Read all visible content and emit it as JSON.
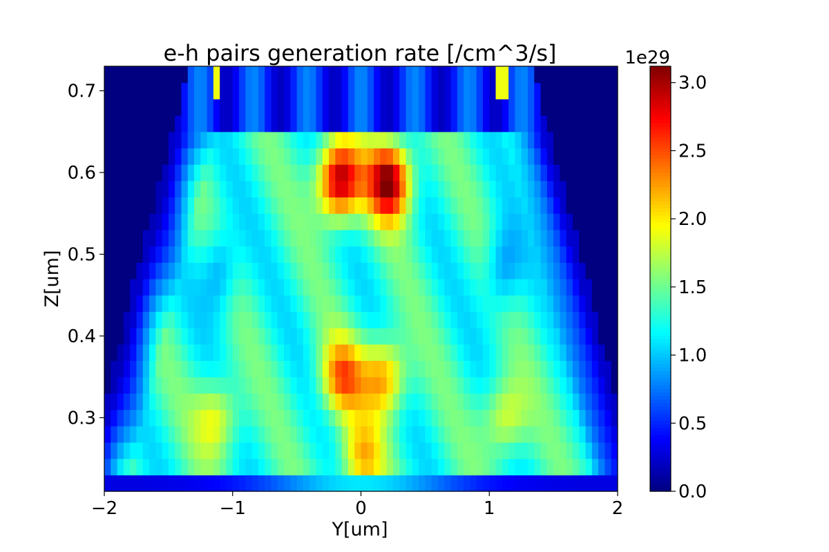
{
  "chart_data": {
    "type": "heatmap",
    "title": "e-h pairs generation rate [/cm^3/s]",
    "xlabel": "Y[um]",
    "ylabel": "Z[um]",
    "xlim": [
      -2.0,
      2.0
    ],
    "ylim": [
      0.21,
      0.73
    ],
    "x_ticks": [
      -2,
      -1,
      0,
      1,
      2
    ],
    "x_tick_labels": [
      "−2",
      "−1",
      "0",
      "1",
      "2"
    ],
    "y_ticks": [
      0.3,
      0.4,
      0.5,
      0.6,
      0.7
    ],
    "y_tick_labels": [
      "0.3",
      "0.4",
      "0.5",
      "0.6",
      "0.7"
    ],
    "colormap": "jet",
    "grid": false,
    "colorbar": {
      "multiplier_label": "1e29",
      "vmin": 0.0,
      "vmax": 3.12,
      "ticks": [
        0.0,
        0.5,
        1.0,
        1.5,
        2.0,
        2.5,
        3.0
      ],
      "tick_labels": [
        "0.0",
        "0.5",
        "1.0",
        "1.5",
        "2.0",
        "2.5",
        "3.0"
      ]
    },
    "grid_spec": {
      "nx": 80,
      "ny": 26,
      "x_start": -2.0,
      "x_step": 0.05,
      "y_start": 0.21,
      "y_step": 0.02
    },
    "features": {
      "outer_region_value": 0.0,
      "bottom_strip": {
        "z_range": [
          0.21,
          0.23
        ],
        "center_value": 1.1,
        "edge_value": 0.3
      },
      "top_band": {
        "z_range": [
          0.65,
          0.73
        ],
        "value_range": [
          0.2,
          0.9
        ]
      },
      "thin_lines": [
        {
          "y": -1.12,
          "z_range": [
            0.69,
            0.73
          ],
          "value": 1.9
        },
        {
          "y": 1.1,
          "z_range": [
            0.69,
            0.73
          ],
          "value": 1.9
        }
      ],
      "hotspots": [
        {
          "y": -0.17,
          "z": 0.59,
          "peak": 3.1
        },
        {
          "y": 0.22,
          "z": 0.59,
          "peak": 3.1
        },
        {
          "y": -0.15,
          "z": 0.35,
          "peak": 2.35
        },
        {
          "y": 0.18,
          "z": 0.35,
          "peak": 2.35
        },
        {
          "y": 0.0,
          "z": 0.25,
          "peak": 2.1
        },
        {
          "y": -1.12,
          "z": 0.3,
          "peak": 2.0
        },
        {
          "y": 1.12,
          "z": 0.3,
          "peak": 2.0
        }
      ]
    }
  }
}
